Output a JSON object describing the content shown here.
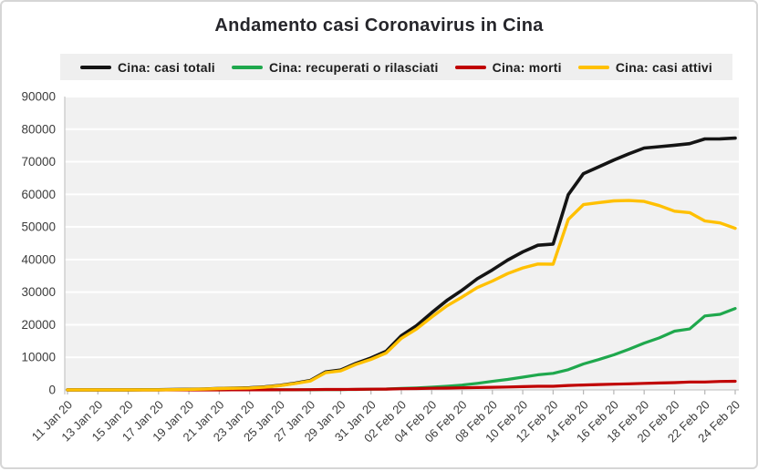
{
  "title": "Andamento casi Coronavirus in Cina",
  "colors": {
    "card_border": "#d6d6d6",
    "panel_bg": "#f1f1f1",
    "gridline": "#ffffff",
    "legend_bg": "#efefef",
    "axis_line": "#c9c9c9",
    "tick": "#b5b5b5",
    "axis_text": "#3c3c3c",
    "title_text": "#26262b"
  },
  "chart_data": {
    "type": "line",
    "title": "Andamento casi Coronavirus in Cina",
    "xlabel": "",
    "ylabel": "",
    "ylim": [
      0,
      90000
    ],
    "y_tick_step": 10000,
    "y_tick_labels": [
      "0",
      "10000",
      "20000",
      "30000",
      "40000",
      "50000",
      "60000",
      "70000",
      "80000",
      "90000"
    ],
    "grid": "horizontal",
    "legend_position": "top",
    "label_every": 2,
    "x": [
      "11 Jan 20",
      "12 Jan 20",
      "13 Jan 20",
      "14 Jan 20",
      "15 Jan 20",
      "16 Jan 20",
      "17 Jan 20",
      "18 Jan 20",
      "19 Jan 20",
      "20 Jan 20",
      "21 Jan 20",
      "22 Jan 20",
      "23 Jan 20",
      "24 Jan 20",
      "25 Jan 20",
      "26 Jan 20",
      "27 Jan 20",
      "28 Jan 20",
      "29 Jan 20",
      "30 Jan 20",
      "31 Jan 20",
      "01 Feb 20",
      "02 Feb 20",
      "03 Feb 20",
      "04 Feb 20",
      "05 Feb 20",
      "06 Feb 20",
      "07 Feb 20",
      "08 Feb 20",
      "09 Feb 20",
      "10 Feb 20",
      "11 Feb 20",
      "12 Feb 20",
      "13 Feb 20",
      "14 Feb 20",
      "15 Feb 20",
      "16 Feb 20",
      "17 Feb 20",
      "18 Feb 20",
      "19 Feb 20",
      "20 Feb 20",
      "21 Feb 20",
      "22 Feb 20",
      "23 Feb 20",
      "24 Feb 20"
    ],
    "x_tick_labels": [
      "11 Jan 20",
      "13 Jan 20",
      "15 Jan 20",
      "17 Jan 20",
      "19 Jan 20",
      "21 Jan 20",
      "23 Jan 20",
      "25 Jan 20",
      "27 Jan 20",
      "29 Jan 20",
      "31 Jan 20",
      "02 Feb 20",
      "04 Feb 20",
      "06 Feb 20",
      "08 Feb 20",
      "10 Feb 20",
      "12 Feb 20",
      "14 Feb 20",
      "16 Feb 20",
      "18 Feb 20",
      "20 Feb 20",
      "22 Feb 20",
      "24 Feb 20"
    ],
    "series": [
      {
        "name": "Cina: casi totali",
        "color": "#141414",
        "width": 3.6,
        "values": [
          41,
          41,
          41,
          41,
          41,
          45,
          62,
          121,
          198,
          291,
          440,
          548,
          643,
          920,
          1406,
          2075,
          2877,
          5509,
          6087,
          8141,
          9802,
          11891,
          16630,
          19716,
          23707,
          27440,
          30587,
          34110,
          36814,
          39829,
          42354,
          44386,
          44759,
          59895,
          66358,
          68413,
          70513,
          72434,
          74211,
          74619,
          75077,
          75550,
          77001,
          77022,
          77241
        ]
      },
      {
        "name": "Cina: recuperati o rilasciati",
        "color": "#1fa84d",
        "width": 3.2,
        "values": [
          2,
          3,
          5,
          7,
          12,
          15,
          19,
          24,
          25,
          25,
          25,
          28,
          30,
          36,
          39,
          49,
          58,
          101,
          120,
          135,
          214,
          275,
          463,
          614,
          843,
          1115,
          1477,
          2011,
          2616,
          3219,
          3918,
          4636,
          5082,
          6217,
          7977,
          9298,
          10755,
          12462,
          14376,
          15962,
          18014,
          18704,
          22699,
          23187,
          24990
        ]
      },
      {
        "name": "Cina: morti",
        "color": "#c00000",
        "width": 3.2,
        "values": [
          1,
          1,
          1,
          1,
          2,
          2,
          2,
          3,
          4,
          6,
          9,
          17,
          18,
          26,
          42,
          56,
          82,
          131,
          133,
          171,
          213,
          259,
          361,
          425,
          491,
          563,
          633,
          718,
          805,
          905,
          1012,
          1112,
          1117,
          1369,
          1521,
          1663,
          1766,
          1864,
          2003,
          2116,
          2238,
          2443,
          2445,
          2595,
          2663
        ]
      },
      {
        "name": "Cina: casi attivi",
        "color": "#ffc000",
        "width": 3.4,
        "values": [
          38,
          37,
          35,
          33,
          27,
          28,
          41,
          94,
          169,
          260,
          406,
          503,
          595,
          858,
          1325,
          1970,
          2737,
          5277,
          5834,
          7835,
          9375,
          11357,
          15806,
          18677,
          22373,
          25762,
          28477,
          31381,
          33393,
          35705,
          37424,
          38638,
          38560,
          52309,
          56860,
          57452,
          57992,
          58108,
          57832,
          56541,
          54825,
          54403,
          51857,
          51240,
          49588
        ]
      }
    ]
  }
}
